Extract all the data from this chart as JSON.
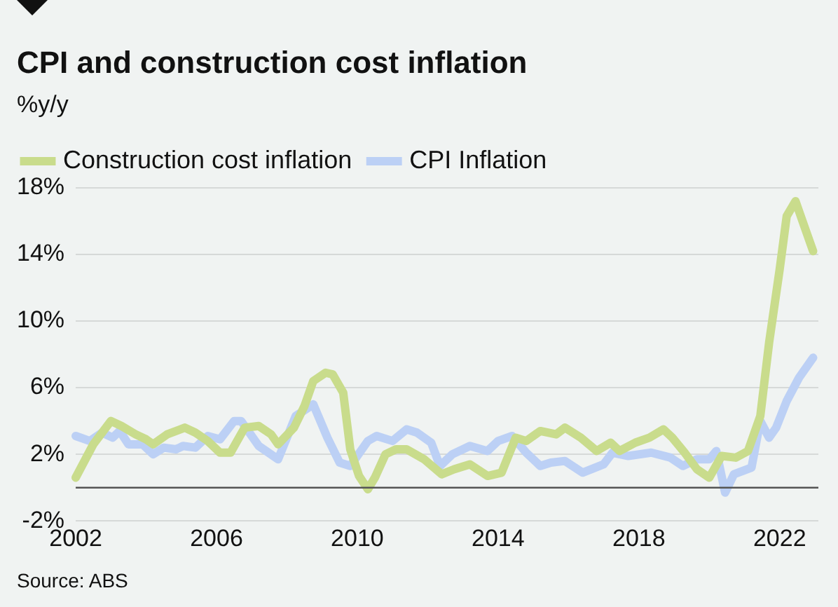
{
  "chart_data": {
    "type": "line",
    "title": "CPI and construction cost inflation",
    "subtitle": "%y/y",
    "annotations": [
      "Source: ABS"
    ],
    "series": [
      {
        "name": "Construction cost inflation",
        "color": "#c9dc8c",
        "x": [
          2002,
          2002.5,
          2003,
          2003.3,
          2003.7,
          2004,
          2004.2,
          2004.6,
          2005.1,
          2005.4,
          2005.75,
          2006.1,
          2006.4,
          2006.8,
          2007.2,
          2007.55,
          2007.75,
          2008.2,
          2008.5,
          2008.75,
          2009.1,
          2009.3,
          2009.6,
          2009.8,
          2010.05,
          2010.3,
          2010.5,
          2010.8,
          2011.1,
          2011.4,
          2011.9,
          2012.4,
          2012.75,
          2013.2,
          2013.7,
          2014.1,
          2014.5,
          2014.8,
          2015.2,
          2015.65,
          2015.9,
          2016.35,
          2016.8,
          2017.2,
          2017.45,
          2017.9,
          2018.3,
          2018.7,
          2018.95,
          2019.3,
          2019.65,
          2020,
          2020.35,
          2020.75,
          2021.1,
          2021.45,
          2021.7,
          2022,
          2022.2,
          2022.45,
          2022.7,
          2022.95
        ],
        "values": [
          0.6,
          2.6,
          4.0,
          3.7,
          3.2,
          2.9,
          2.6,
          3.2,
          3.6,
          3.3,
          2.8,
          2.1,
          2.1,
          3.6,
          3.7,
          3.2,
          2.6,
          3.6,
          4.9,
          6.4,
          6.9,
          6.8,
          5.7,
          2.3,
          0.7,
          -0.1,
          0.6,
          2.0,
          2.3,
          2.3,
          1.7,
          0.8,
          1.1,
          1.4,
          0.7,
          0.9,
          3.0,
          2.8,
          3.4,
          3.2,
          3.6,
          3.0,
          2.2,
          2.7,
          2.2,
          2.7,
          3.0,
          3.5,
          3.0,
          2.1,
          1.1,
          0.6,
          1.9,
          1.8,
          2.2,
          4.3,
          8.7,
          13.1,
          16.3,
          17.2,
          15.7,
          14.2
        ]
      },
      {
        "name": "CPI Inflation",
        "color": "#bcd0f5",
        "x": [
          2002,
          2002.4,
          2002.75,
          2003.05,
          2003.25,
          2003.5,
          2003.9,
          2004.2,
          2004.5,
          2004.85,
          2005.05,
          2005.4,
          2005.75,
          2006.1,
          2006.5,
          2006.7,
          2007.2,
          2007.75,
          2008.25,
          2008.75,
          2009.15,
          2009.5,
          2009.8,
          2010.3,
          2010.55,
          2011,
          2011.4,
          2011.7,
          2012.1,
          2012.35,
          2012.7,
          2013.2,
          2013.7,
          2014,
          2014.4,
          2014.8,
          2015.2,
          2015.5,
          2015.9,
          2016.4,
          2017,
          2017.25,
          2017.7,
          2018.35,
          2018.9,
          2019.25,
          2019.65,
          2020,
          2020.2,
          2020.45,
          2020.7,
          2021.2,
          2021.45,
          2021.7,
          2021.9,
          2022.2,
          2022.55,
          2022.95
        ],
        "values": [
          3.1,
          2.8,
          3.3,
          3.0,
          3.4,
          2.6,
          2.6,
          2.0,
          2.4,
          2.3,
          2.5,
          2.4,
          3.1,
          2.9,
          4.0,
          4.0,
          2.5,
          1.7,
          4.3,
          5.0,
          3.0,
          1.5,
          1.3,
          2.8,
          3.1,
          2.8,
          3.5,
          3.3,
          2.7,
          1.3,
          2.0,
          2.5,
          2.2,
          2.8,
          3.1,
          2.1,
          1.3,
          1.5,
          1.6,
          0.9,
          1.4,
          2.1,
          1.9,
          2.1,
          1.8,
          1.3,
          1.7,
          1.7,
          2.2,
          -0.3,
          0.8,
          1.2,
          4.0,
          3.0,
          3.6,
          5.2,
          6.6,
          7.8
        ]
      }
    ],
    "xlim": [
      2002,
      2023.1
    ],
    "xticks": [
      2002,
      2006,
      2010,
      2014,
      2018,
      2022
    ],
    "ylim": [
      -2,
      18
    ],
    "yticks": [
      {
        "value": -2,
        "label": "-2%"
      },
      {
        "value": 2,
        "label": "2%"
      },
      {
        "value": 6,
        "label": "6%"
      },
      {
        "value": 10,
        "label": "10%"
      },
      {
        "value": 14,
        "label": "14%"
      },
      {
        "value": 18,
        "label": "18%"
      }
    ],
    "ref_lines": [
      {
        "axis": "y",
        "value": 0,
        "color": "#555555"
      }
    ],
    "grid": "y",
    "legend": "top left",
    "marker": "none",
    "line_style": "solid"
  }
}
